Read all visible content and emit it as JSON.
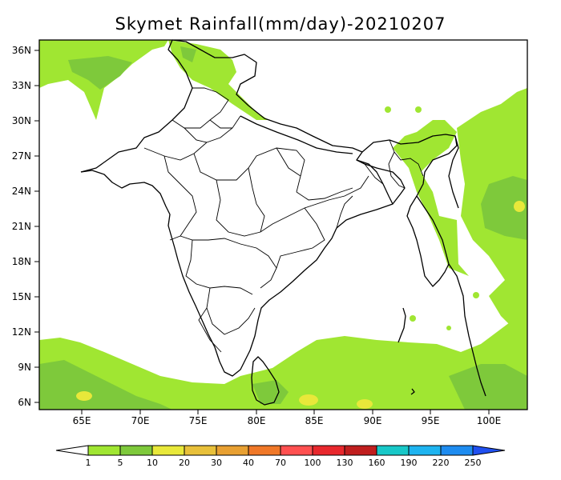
{
  "title": "Skymet Rainfall(mm/day)-20210207",
  "map": {
    "lon_range": [
      61,
      103
    ],
    "lat_range": [
      5.5,
      37
    ],
    "lat_ticks": [
      "36N",
      "33N",
      "30N",
      "27N",
      "24N",
      "21N",
      "18N",
      "15N",
      "12N",
      "9N",
      "6N"
    ],
    "lon_ticks": [
      "65E",
      "70E",
      "75E",
      "80E",
      "85E",
      "90E",
      "95E",
      "100E"
    ]
  },
  "colorbar": {
    "labels": [
      "1",
      "5",
      "10",
      "20",
      "30",
      "40",
      "70",
      "100",
      "130",
      "160",
      "190",
      "220",
      "250"
    ],
    "colors": [
      "#a0e632",
      "#7ec93b",
      "#e8e83a",
      "#e8c03a",
      "#e8a032",
      "#f07828",
      "#ff5050",
      "#e8282d",
      "#c01e1e",
      "#18c8c8",
      "#1eb4f0",
      "#1e8cf0",
      "#2050f0"
    ]
  }
}
